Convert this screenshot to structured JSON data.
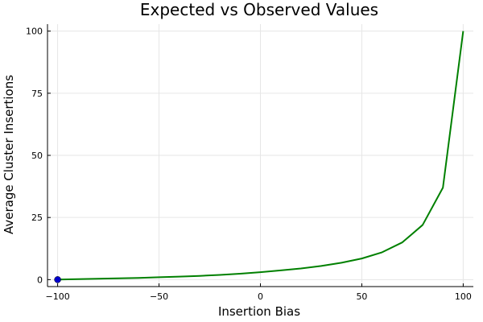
{
  "chart_data": {
    "type": "line",
    "title": "Expected vs Observed Values",
    "xlabel": "Insertion Bias",
    "ylabel": "Average Cluster Insertions",
    "xlim": [
      -105,
      105
    ],
    "ylim": [
      -2.8,
      102.8
    ],
    "xticks": [
      -100,
      -50,
      0,
      50,
      100
    ],
    "xtick_labels": [
      "−100",
      "−50",
      "0",
      "50",
      "100"
    ],
    "yticks": [
      0,
      25,
      50,
      75,
      100
    ],
    "ytick_labels": [
      "0",
      "25",
      "50",
      "75",
      "100"
    ],
    "grid": true,
    "legend": "none",
    "series": [
      {
        "type": "line",
        "color": "#008000",
        "x": [
          -100,
          -90,
          -80,
          -70,
          -60,
          -50,
          -40,
          -30,
          -20,
          -10,
          0,
          10,
          20,
          30,
          40,
          50,
          60,
          70,
          80,
          90,
          100
        ],
        "y": [
          0.05,
          0.2,
          0.35,
          0.5,
          0.7,
          0.95,
          1.2,
          1.5,
          1.9,
          2.4,
          3.0,
          3.7,
          4.5,
          5.5,
          6.8,
          8.5,
          11.0,
          15.0,
          22.0,
          37.0,
          100.0
        ]
      },
      {
        "type": "scatter",
        "color": "#0000cc",
        "x": [
          -100
        ],
        "y": [
          0.0
        ]
      }
    ]
  }
}
